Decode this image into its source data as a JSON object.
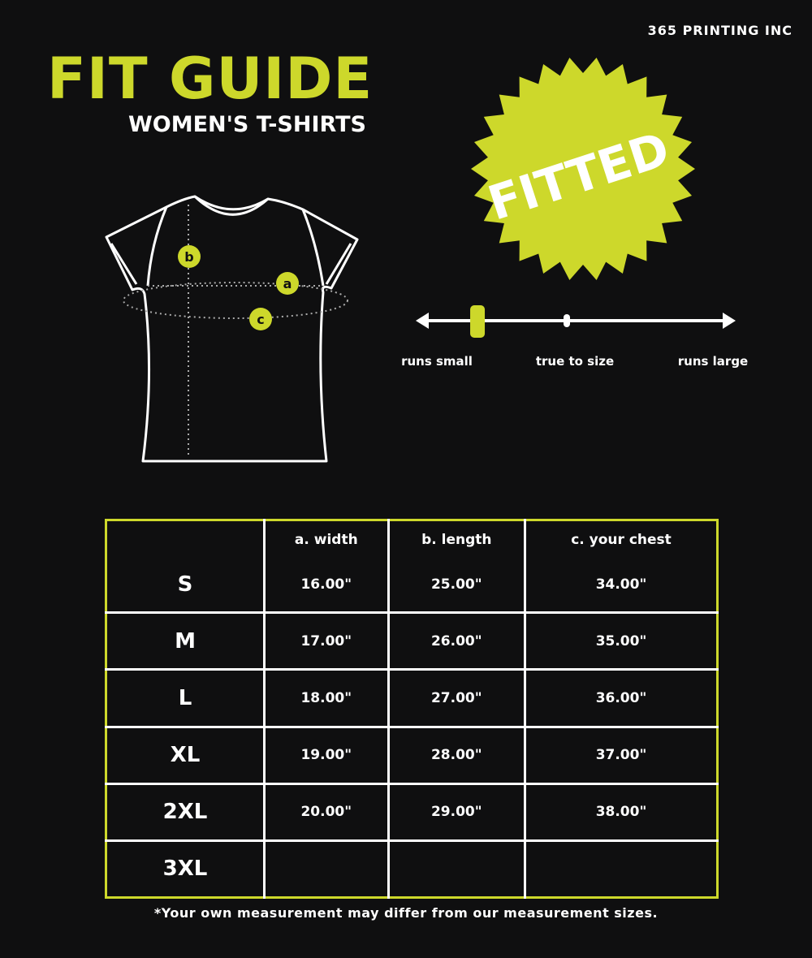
{
  "brand": "365 PRINTING INC",
  "title": "FIT GUIDE",
  "subtitle": "WOMEN'S T-SHIRTS",
  "badge": {
    "text": "FITTED",
    "color": "#cdd82b"
  },
  "diagram": {
    "labels": {
      "a": "a",
      "b": "b",
      "c": "c"
    }
  },
  "fit_scale": {
    "labels": [
      "runs small",
      "true to size",
      "runs large"
    ],
    "position": 0.18
  },
  "table": {
    "headers": [
      "",
      "a. width",
      "b. length",
      "c. your chest"
    ],
    "rows": [
      [
        "S",
        "16.00\"",
        "25.00\"",
        "34.00\""
      ],
      [
        "M",
        "17.00\"",
        "26.00\"",
        "35.00\""
      ],
      [
        "L",
        "18.00\"",
        "27.00\"",
        "36.00\""
      ],
      [
        "XL",
        "19.00\"",
        "28.00\"",
        "37.00\""
      ],
      [
        "2XL",
        "20.00\"",
        "29.00\"",
        "38.00\""
      ],
      [
        "3XL",
        "",
        "",
        ""
      ]
    ]
  },
  "note": "*Your own measurement may differ from our measurement sizes."
}
